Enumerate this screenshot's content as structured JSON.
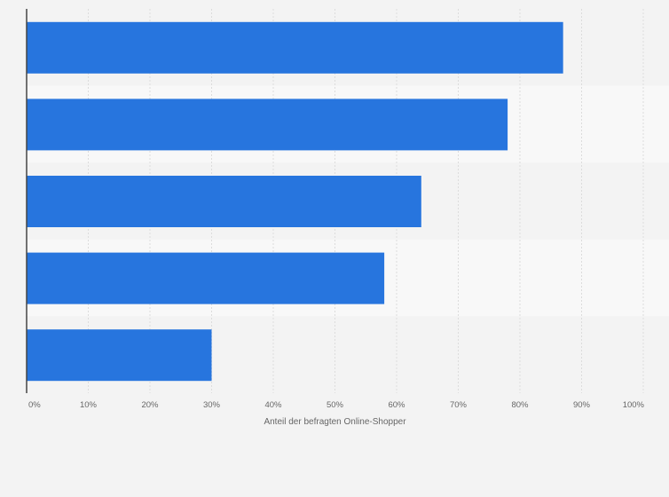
{
  "chart_data": {
    "type": "bar",
    "orientation": "horizontal",
    "categories": [
      "",
      "",
      "",
      "",
      ""
    ],
    "values": [
      87,
      78,
      64,
      58,
      30
    ],
    "xlabel": "Anteil der befragten Online-Shopper",
    "ylabel": "",
    "xlim": [
      0,
      100
    ],
    "x_ticks": [
      "0%",
      "10%",
      "20%",
      "30%",
      "40%",
      "50%",
      "60%",
      "70%",
      "80%",
      "90%",
      "100%"
    ],
    "grid": true,
    "legend": "none",
    "colors": {
      "bar": "#2775de",
      "background": "#f3f3f3",
      "band_alt": "#f8f8f8",
      "grid": "#dcdcdc",
      "axis": "#444444",
      "text": "#666666"
    }
  }
}
